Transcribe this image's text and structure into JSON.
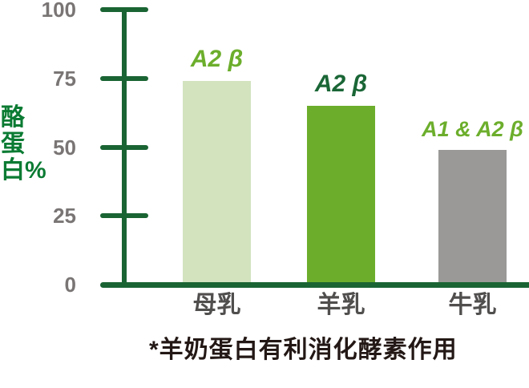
{
  "page": {
    "background": "#ffffff"
  },
  "chart_data": {
    "type": "bar",
    "title": "",
    "xlabel": "",
    "ylabel": "酪蛋白%",
    "ylim": [
      0,
      100
    ],
    "grid": false,
    "legend_position": "none",
    "yticks": [
      {
        "label": "100",
        "value": 100
      },
      {
        "label": "75",
        "value": 75
      },
      {
        "label": "50",
        "value": 50
      },
      {
        "label": "25",
        "value": 25
      },
      {
        "label": "0",
        "value": 0
      }
    ],
    "categories": [
      "母乳",
      "羊乳",
      "牛乳"
    ],
    "values": [
      74,
      65,
      49
    ],
    "bar_annotations": [
      "A2 β",
      "A2 β",
      "A1 & A2 β"
    ],
    "bar_colors": [
      "#d2e3be",
      "#6cae2c",
      "#9a9998"
    ],
    "annotation_colors": [
      "#6cae2c",
      "#1a6636",
      "#6cae2c"
    ],
    "footnote": "*羊奶蛋白有利消化酵素作用",
    "axis_color": "#1a6433",
    "tick_label_color": "#7a7575",
    "category_label_color": "#514e4e",
    "ylabel_color": "#0b7b33",
    "footnote_color": "#231815"
  }
}
